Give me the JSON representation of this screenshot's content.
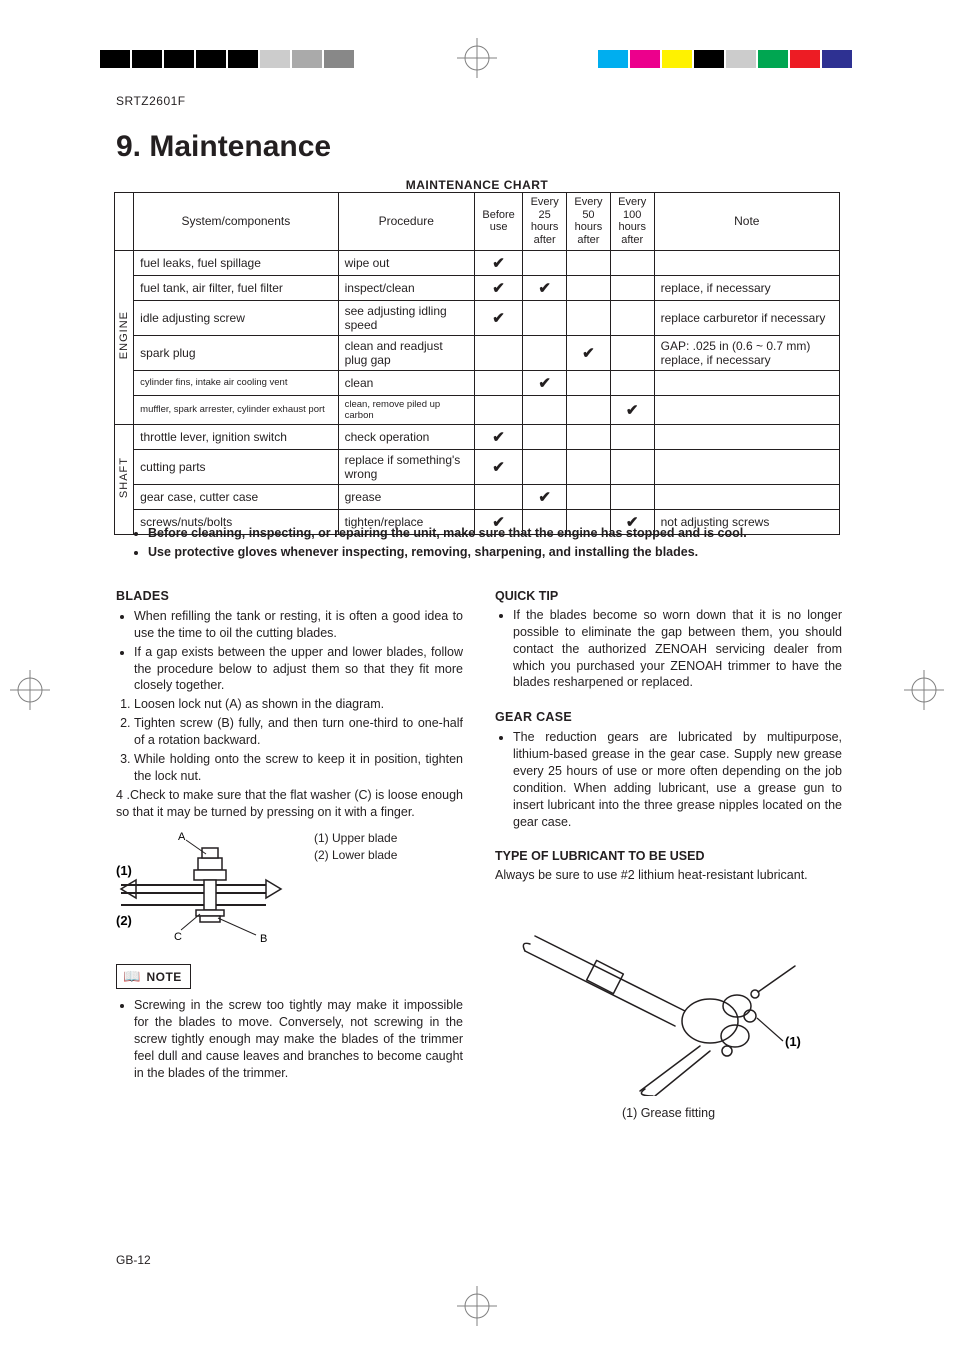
{
  "registration_marks": {
    "left_colors": [
      "#000000",
      "#000000",
      "#000000",
      "#000000",
      "#000000",
      "#cccccc",
      "#aaaaaa",
      "#888888"
    ],
    "right_colors": [
      "#00aeef",
      "#ec008c",
      "#fff200",
      "#000000",
      "#cccccc",
      "#00a651",
      "#ed1c24",
      "#2e3192"
    ]
  },
  "header_code": "SRTZ2601F",
  "title": "9. Maintenance",
  "chart_title": "MAINTENANCE CHART",
  "table": {
    "headers": {
      "system": "System/components",
      "procedure": "Procedure",
      "before": "Before use",
      "h25": "Every 25 hours after",
      "h50": "Every 50 hours after",
      "h100": "Every 100 hours after",
      "note": "Note"
    },
    "groups": [
      {
        "label": "ENGINE",
        "rows": [
          {
            "sys": "fuel leaks, fuel spillage",
            "proc": "wipe out",
            "before": "✔",
            "h25": "",
            "h50": "",
            "h100": "",
            "note": ""
          },
          {
            "sys": "fuel tank, air filter, fuel filter",
            "proc": "inspect/clean",
            "before": "✔",
            "h25": "✔",
            "h50": "",
            "h100": "",
            "note": "replace, if necessary"
          },
          {
            "sys": "idle adjusting screw",
            "proc": "see adjusting idling speed",
            "before": "✔",
            "h25": "",
            "h50": "",
            "h100": "",
            "note": "replace carburetor if necessary"
          },
          {
            "sys": "spark plug",
            "proc": "clean and readjust plug gap",
            "before": "",
            "h25": "",
            "h50": "✔",
            "h100": "",
            "note": "GAP: .025 in (0.6 ~ 0.7 mm) replace, if necessary"
          },
          {
            "sys": "cylinder fins, intake air cooling vent",
            "proc": "clean",
            "before": "",
            "h25": "✔",
            "h50": "",
            "h100": "",
            "note": "",
            "tiny_sys": true
          },
          {
            "sys": "muffler, spark arrester, cylinder exhaust port",
            "proc": "clean, remove piled up carbon",
            "before": "",
            "h25": "",
            "h50": "",
            "h100": "✔",
            "note": "",
            "tiny_sys": true,
            "tiny_proc": true
          }
        ]
      },
      {
        "label": "SHAFT",
        "rows": [
          {
            "sys": "throttle lever, ignition switch",
            "proc": "check operation",
            "before": "✔",
            "h25": "",
            "h50": "",
            "h100": "",
            "note": ""
          },
          {
            "sys": "cutting parts",
            "proc": "replace if something's wrong",
            "before": "✔",
            "h25": "",
            "h50": "",
            "h100": "",
            "note": ""
          },
          {
            "sys": "gear case, cutter case",
            "proc": "grease",
            "before": "",
            "h25": "✔",
            "h50": "",
            "h100": "",
            "note": ""
          },
          {
            "sys": "screws/nuts/bolts",
            "proc": "tighten/replace",
            "before": "✔",
            "h25": "",
            "h50": "",
            "h100": "✔",
            "note": "not adjusting screws"
          }
        ]
      }
    ]
  },
  "bold_bullets": [
    "Before cleaning, inspecting, or repairing the unit, make sure that the engine has stopped and is cool.",
    "Use protective gloves whenever inspecting, removing, sharpening, and installing the blades."
  ],
  "left_col": {
    "blades_head": "BLADES",
    "blades_bullets": [
      "When refilling the tank or resting, it is often a good idea to use the time to oil the cutting blades.",
      "If a gap exists between the upper and lower blades, follow the procedure below to adjust them so that they fit more closely together."
    ],
    "blades_steps": [
      "Loosen lock nut (A) as shown in the diagram.",
      "Tighten screw (B) fully, and then turn one-third to one-half of a rotation backward.",
      "While holding onto the screw to keep it in position, tighten the lock nut.",
      ".Check to make sure that the flat washer (C) is loose enough so that it may be turned by pressing on it with a finger."
    ],
    "blade_fig": {
      "labels": {
        "one": "(1)",
        "two": "(2)",
        "A": "A",
        "B": "B",
        "C": "C"
      },
      "legend": {
        "l1": "(1) Upper blade",
        "l2": "(2) Lower blade"
      }
    },
    "note_label": "NOTE",
    "note_bullet": "Screwing in the screw too tightly may make it impossible for the blades to move.  Conversely, not screwing in the screw tightly enough may make the blades of the trimmer feel dull and cause leaves and branches to become caught in the blades of the trimmer."
  },
  "right_col": {
    "quick_head": "QUICK TIP",
    "quick_bullet": "If the blades become so worn down that it is no longer possible to eliminate the gap between them, you should contact the authorized ZENOAH servicing dealer from which you purchased your ZENOAH trimmer to have the blades resharpened or replaced.",
    "gear_head": "GEAR CASE",
    "gear_bullet": "The reduction gears are lubricated by multipurpose, lithium-based grease in the gear case. Supply new grease every 25 hours of use or more often depending on the job condition. When adding lubricant, use a grease gun to insert lubricant into the three grease nipples located on the gear case.",
    "lube_head": "TYPE OF LUBRICANT TO BE USED",
    "lube_text": "Always be sure to use #2 lithium heat-resistant lubricant.",
    "fig_label_one": "(1)",
    "fig_caption": "(1) Grease fitting"
  },
  "footer": "GB-12"
}
